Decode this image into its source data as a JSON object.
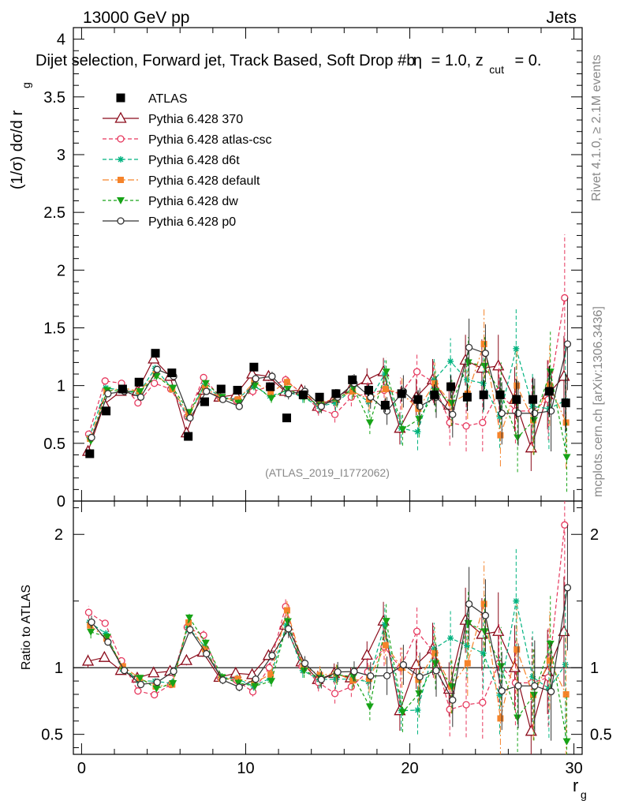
{
  "header": {
    "energy": "13000 GeV pp",
    "category": "Jets",
    "rivet": "Rivet 4.1.0, ≥ 2.1M events",
    "mcplots": "mcplots.cern.ch [arXiv:1306.3436]",
    "analysis": "(ATLAS_2019_I1772062)"
  },
  "chart_data": {
    "type": "scatter",
    "title": "Dijet selection, Forward jet, Track Based, Soft Drop #b",
    "title_suffix": "= 1.0, z",
    "title_sub": "cut",
    "title_tail": "= 0.",
    "title_greek": "η",
    "ylabel": "(1/σ) dσ/d r",
    "ylabel_sub": "g",
    "xlabel": "r",
    "xlabel_sub": "g",
    "ratio_ylabel": "Ratio to ATLAS",
    "xlim": [
      -0.5,
      30.5
    ],
    "ylim": [
      0,
      4.1
    ],
    "ratio_ylim": [
      0.35,
      2.25
    ],
    "x_ticks": [
      "0",
      "10",
      "20",
      "30"
    ],
    "y_ticks": [
      "0",
      "0.5",
      "1",
      "1.5",
      "2",
      "2.5",
      "3",
      "3.5",
      "4"
    ],
    "ratio_ticks": [
      "0.5",
      "1",
      "2"
    ],
    "x": [
      0.5,
      1.5,
      2.5,
      3.5,
      4.5,
      5.5,
      6.5,
      7.5,
      8.5,
      9.5,
      10.5,
      11.5,
      12.5,
      13.5,
      14.5,
      15.5,
      16.5,
      17.5,
      18.5,
      19.5,
      20.5,
      21.5,
      22.5,
      23.5,
      24.5,
      25.5,
      26.5,
      27.5,
      28.5,
      29.5
    ],
    "legend": [
      "ATLAS",
      "Pythia 6.428 370",
      "Pythia 6.428 atlas-csc",
      "Pythia 6.428 d6t",
      "Pythia 6.428 default",
      "Pythia 6.428 dw",
      "Pythia 6.428 p0"
    ],
    "data": {
      "name": "ATLAS",
      "values": [
        0.41,
        0.78,
        0.97,
        1.03,
        1.28,
        1.11,
        0.56,
        0.86,
        0.97,
        0.96,
        1.16,
        0.99,
        0.72,
        0.92,
        0.9,
        0.93,
        1.05,
        0.96,
        0.83,
        0.93,
        0.88,
        0.92,
        0.99,
        0.9,
        0.92,
        0.92,
        0.88,
        0.88,
        0.95,
        0.85
      ],
      "errors": [
        0.02,
        0.02,
        0.02,
        0.02,
        0.02,
        0.02,
        0.02,
        0.02,
        0.02,
        0.02,
        0.03,
        0.03,
        0.03,
        0.03,
        0.03,
        0.04,
        0.04,
        0.05,
        0.06,
        0.07,
        0.08,
        0.09,
        0.1,
        0.12,
        0.13,
        0.15,
        0.17,
        0.19,
        0.22,
        0.25
      ]
    },
    "series": [
      {
        "name": "Pythia 6.428 370",
        "color": "#8b0a1a",
        "marker": "triangle-open",
        "dash": "",
        "values": [
          0.43,
          0.84,
          0.95,
          0.95,
          1.23,
          1.08,
          0.59,
          0.96,
          0.9,
          0.92,
          1.1,
          1.08,
          0.95,
          0.96,
          0.82,
          0.89,
          0.97,
          1.05,
          1.12,
          0.63,
          0.9,
          1.05,
          0.83,
          1.22,
          1.15,
          1.17,
          0.88,
          0.46,
          0.92,
          1.08
        ],
        "errors": [
          0.02,
          0.02,
          0.02,
          0.02,
          0.03,
          0.03,
          0.02,
          0.03,
          0.03,
          0.03,
          0.04,
          0.04,
          0.05,
          0.05,
          0.06,
          0.07,
          0.08,
          0.1,
          0.12,
          0.14,
          0.16,
          0.18,
          0.2,
          0.22,
          0.25,
          0.27,
          0.28,
          0.2,
          0.3,
          0.35
        ]
      },
      {
        "name": "Pythia 6.428 atlas-csc",
        "color": "#e6365c",
        "marker": "circle-open",
        "dash": "5,3",
        "values": [
          0.58,
          1.04,
          1.02,
          0.85,
          1.02,
          0.97,
          0.73,
          1.07,
          0.9,
          0.87,
          0.95,
          0.99,
          1.05,
          0.93,
          0.8,
          0.75,
          0.9,
          0.93,
          0.96,
          0.93,
          1.12,
          1.03,
          0.68,
          0.65,
          0.68,
          0.95,
          0.78,
          0.78,
          0.88,
          1.76
        ],
        "errors": [
          0.02,
          0.02,
          0.02,
          0.02,
          0.03,
          0.03,
          0.02,
          0.03,
          0.03,
          0.03,
          0.04,
          0.04,
          0.05,
          0.05,
          0.06,
          0.07,
          0.08,
          0.1,
          0.12,
          0.14,
          0.16,
          0.18,
          0.2,
          0.22,
          0.25,
          0.27,
          0.28,
          0.3,
          0.35,
          0.55
        ]
      },
      {
        "name": "Pythia 6.428 d6t",
        "color": "#00b27f",
        "marker": "star",
        "dash": "5,3",
        "values": [
          0.55,
          0.98,
          0.96,
          0.93,
          1.15,
          0.98,
          0.73,
          1.0,
          0.9,
          0.88,
          1.0,
          0.91,
          0.95,
          0.9,
          0.82,
          0.85,
          0.96,
          0.86,
          1.1,
          0.63,
          0.6,
          1.05,
          1.21,
          1.05,
          1.02,
          0.73,
          1.32,
          0.82,
          0.8,
          0.87
        ],
        "errors": [
          0.02,
          0.02,
          0.02,
          0.02,
          0.03,
          0.03,
          0.02,
          0.03,
          0.03,
          0.03,
          0.04,
          0.04,
          0.05,
          0.05,
          0.06,
          0.07,
          0.08,
          0.1,
          0.12,
          0.14,
          0.16,
          0.18,
          0.2,
          0.22,
          0.25,
          0.27,
          0.35,
          0.3,
          0.35,
          0.5
        ]
      },
      {
        "name": "Pythia 6.428 default",
        "color": "#f5832a",
        "marker": "square",
        "dash": "8,3,2,3",
        "values": [
          0.54,
          0.95,
          0.98,
          0.95,
          1.1,
          0.97,
          0.75,
          0.98,
          0.89,
          0.88,
          1.03,
          0.94,
          1.03,
          0.93,
          0.85,
          0.89,
          0.95,
          0.88,
          0.97,
          0.93,
          0.8,
          1.02,
          0.85,
          0.93,
          1.36,
          0.57,
          1.0,
          0.7,
          1.0,
          0.68
        ],
        "errors": [
          0.02,
          0.02,
          0.02,
          0.02,
          0.03,
          0.03,
          0.02,
          0.03,
          0.03,
          0.03,
          0.04,
          0.04,
          0.05,
          0.05,
          0.06,
          0.07,
          0.08,
          0.1,
          0.12,
          0.14,
          0.16,
          0.18,
          0.2,
          0.22,
          0.3,
          0.27,
          0.3,
          0.3,
          0.35,
          0.4
        ]
      },
      {
        "name": "Pythia 6.428 dw",
        "color": "#17a317",
        "marker": "triangle-down",
        "dash": "4,3",
        "values": [
          0.52,
          0.96,
          0.95,
          0.95,
          1.08,
          0.98,
          0.77,
          1.02,
          0.9,
          0.85,
          1.0,
          0.89,
          0.97,
          0.9,
          0.83,
          0.88,
          0.98,
          0.68,
          1.12,
          0.62,
          0.71,
          0.95,
          0.85,
          1.2,
          1.17,
          0.93,
          0.55,
          0.7,
          1.12,
          0.38
        ],
        "errors": [
          0.02,
          0.02,
          0.02,
          0.02,
          0.03,
          0.03,
          0.02,
          0.03,
          0.03,
          0.03,
          0.04,
          0.04,
          0.05,
          0.05,
          0.06,
          0.07,
          0.08,
          0.1,
          0.12,
          0.14,
          0.16,
          0.18,
          0.2,
          0.22,
          0.25,
          0.27,
          0.3,
          0.3,
          0.35,
          0.3
        ]
      },
      {
        "name": "Pythia 6.428 p0",
        "color": "#333333",
        "marker": "circle-open",
        "dash": "",
        "values": [
          0.55,
          0.93,
          0.95,
          0.9,
          1.14,
          1.08,
          0.72,
          0.95,
          0.88,
          0.82,
          1.06,
          1.08,
          0.93,
          0.95,
          0.82,
          0.9,
          1.02,
          0.9,
          0.78,
          0.95,
          0.82,
          0.9,
          0.75,
          1.33,
          1.28,
          0.76,
          0.76,
          0.76,
          0.78,
          1.36
        ],
        "errors": [
          0.02,
          0.02,
          0.02,
          0.02,
          0.03,
          0.03,
          0.02,
          0.03,
          0.03,
          0.03,
          0.04,
          0.04,
          0.05,
          0.05,
          0.06,
          0.07,
          0.08,
          0.1,
          0.12,
          0.14,
          0.16,
          0.18,
          0.2,
          0.25,
          0.25,
          0.27,
          0.28,
          0.3,
          0.35,
          0.4
        ]
      }
    ]
  }
}
